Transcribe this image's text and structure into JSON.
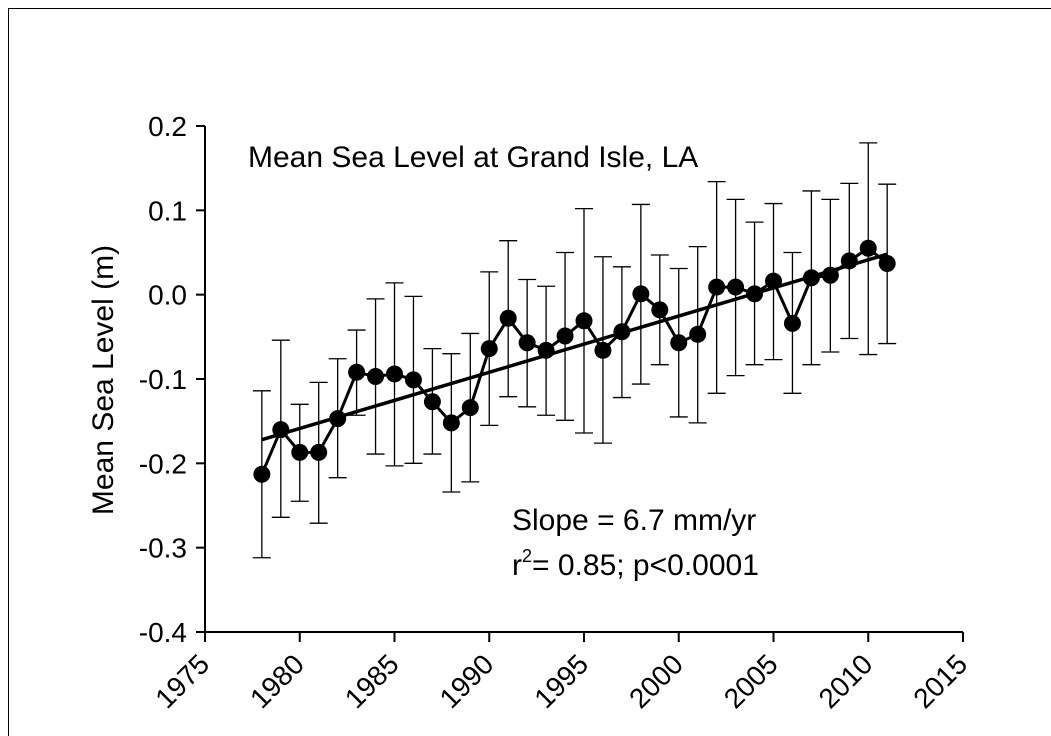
{
  "chart_data": {
    "type": "line",
    "title": "Mean Sea Level at Grand Isle, LA",
    "xlabel": "",
    "ylabel": "Mean Sea Level (m)",
    "xlim": [
      1975,
      2015
    ],
    "ylim": [
      -0.4,
      0.2
    ],
    "xticks": [
      "1975",
      "1980",
      "1985",
      "1990",
      "1995",
      "2000",
      "2005",
      "2010",
      "2015"
    ],
    "yticks": [
      "0.2",
      "0.1",
      "0.0",
      "-0.1",
      "-0.2",
      "-0.3",
      "-0.4"
    ],
    "grid": false,
    "series": [
      {
        "x": [
          1978,
          1979,
          1980,
          1981,
          1982,
          1983,
          1984,
          1985,
          1986,
          1987,
          1988,
          1989,
          1990,
          1991,
          1992,
          1993,
          1994,
          1995,
          1996,
          1997,
          1998,
          1999,
          2000,
          2001,
          2002,
          2003,
          2004,
          2005,
          2006,
          2007,
          2008,
          2009,
          2010,
          2011
        ],
        "y": [
          -0.213,
          -0.16,
          -0.187,
          -0.187,
          -0.147,
          -0.092,
          -0.097,
          -0.094,
          -0.101,
          -0.127,
          -0.152,
          -0.134,
          -0.064,
          -0.028,
          -0.057,
          -0.066,
          -0.049,
          -0.031,
          -0.066,
          -0.044,
          0.001,
          -0.018,
          -0.057,
          -0.047,
          0.009,
          0.009,
          0.001,
          0.016,
          -0.034,
          0.02,
          0.023,
          0.04,
          0.055,
          0.037
        ],
        "error_upper": [
          -0.114,
          -0.054,
          -0.13,
          -0.104,
          -0.076,
          -0.042,
          -0.005,
          0.014,
          -0.002,
          -0.064,
          -0.07,
          -0.046,
          0.027,
          0.064,
          0.018,
          0.01,
          0.05,
          0.102,
          0.045,
          0.033,
          0.107,
          0.047,
          0.031,
          0.057,
          0.134,
          0.113,
          0.086,
          0.108,
          0.05,
          0.123,
          0.113,
          0.132,
          0.18,
          0.131
        ],
        "error_lower": [
          -0.312,
          -0.264,
          -0.245,
          -0.271,
          -0.217,
          -0.143,
          -0.189,
          -0.203,
          -0.2,
          -0.189,
          -0.234,
          -0.222,
          -0.155,
          -0.121,
          -0.133,
          -0.143,
          -0.149,
          -0.164,
          -0.176,
          -0.122,
          -0.106,
          -0.083,
          -0.145,
          -0.152,
          -0.117,
          -0.096,
          -0.083,
          -0.077,
          -0.117,
          -0.083,
          -0.068,
          -0.052,
          -0.071,
          -0.058
        ]
      }
    ],
    "trendline": {
      "x": [
        1978,
        2011
      ],
      "y": [
        -0.172,
        0.048
      ]
    },
    "annotations": [
      {
        "type": "slope",
        "text": "Slope = 6.7 mm/yr"
      },
      {
        "type": "stats",
        "base": "r",
        "sup": "2",
        "rest": "= 0.85; p<0.0001"
      }
    ]
  }
}
